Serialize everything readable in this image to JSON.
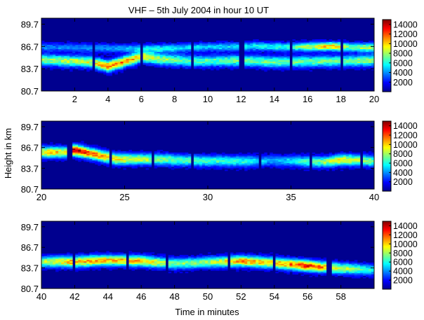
{
  "chart_data": {
    "type": "heatmap",
    "title": "VHF – 5th July 2004 in hour 10 UT",
    "ylabel": "Height in km",
    "xlabel": "Time in minutes",
    "colorbar_ticks": [
      "14000",
      "12000",
      "10000",
      "8000",
      "6000",
      "4000",
      "2000"
    ],
    "panels": [
      {
        "xlim": [
          0,
          20
        ],
        "ylim": [
          80.7,
          90.5
        ],
        "xticks": [
          "2",
          "4",
          "6",
          "8",
          "10",
          "12",
          "14",
          "16",
          "18",
          "20"
        ],
        "yticks": [
          "89.7",
          "86.7",
          "83.7",
          "80.7"
        ],
        "gaps": [
          3.1,
          6.05,
          9.05,
          12.05,
          15.05,
          18.05
        ],
        "layers": [
          {
            "t": [
              0,
              3,
              4,
              6,
              7,
              9,
              12,
              14,
              17,
              20
            ],
            "h": [
              84.9,
              84.6,
              84.0,
              85.3,
              85.0,
              84.7,
              84.8,
              84.6,
              84.7,
              84.8
            ],
            "amp": [
              7000,
              8000,
              11000,
              9000,
              7500,
              6000,
              6500,
              6500,
              6500,
              7000
            ],
            "w": 0.7
          },
          {
            "t": [
              0,
              5,
              7,
              10,
              13,
              15,
              17.5,
              18.5,
              20
            ],
            "h": [
              86.6,
              86.4,
              86.4,
              86.6,
              86.7,
              86.6,
              86.7,
              86.6,
              86.5
            ],
            "amp": [
              3000,
              3500,
              5000,
              4000,
              5000,
              5500,
              10000,
              6500,
              8000
            ],
            "w": 0.55
          }
        ]
      },
      {
        "xlim": [
          20,
          40
        ],
        "ylim": [
          80.7,
          90.5
        ],
        "xticks": [
          "20",
          "25",
          "30",
          "35",
          "40"
        ],
        "yticks": [
          "89.7",
          "86.7",
          "83.7",
          "80.7"
        ],
        "gaps": [
          21.7,
          24.2,
          26.7,
          29.1,
          33.2,
          36.15,
          39.3
        ],
        "layers": [
          {
            "t": [
              20,
              21.5,
              22,
              23,
              24.5,
              27,
              29,
              32,
              34,
              37,
              38,
              39.5,
              40
            ],
            "h": [
              86.0,
              86.0,
              86.3,
              85.8,
              85.0,
              85.0,
              84.8,
              84.7,
              84.8,
              84.6,
              84.9,
              84.8,
              84.7
            ],
            "amp": [
              9000,
              9000,
              14000,
              11000,
              9000,
              7000,
              6000,
              5500,
              3500,
              7000,
              9000,
              7000,
              6500
            ],
            "w": 0.75
          }
        ]
      },
      {
        "xlim": [
          40,
          60
        ],
        "ylim": [
          80.7,
          90.5
        ],
        "xticks": [
          "40",
          "42",
          "44",
          "46",
          "48",
          "50",
          "52",
          "54",
          "56",
          "58"
        ],
        "yticks": [
          "89.7",
          "86.7",
          "83.7",
          "80.7"
        ],
        "gaps": [
          41.9,
          45.2,
          47.6,
          51.25,
          54.05,
          57.3
        ],
        "layers": [
          {
            "t": [
              40,
              42,
              44,
              46,
              48,
              50,
              52,
              54,
              56,
              58,
              60
            ],
            "h": [
              84.6,
              84.6,
              84.8,
              84.7,
              84.3,
              84.5,
              84.7,
              84.4,
              84.0,
              83.6,
              83.4
            ],
            "amp": [
              7000,
              10000,
              9500,
              9500,
              6500,
              7000,
              10000,
              9000,
              12000,
              8000,
              5000
            ],
            "w": 0.75
          }
        ]
      }
    ]
  }
}
